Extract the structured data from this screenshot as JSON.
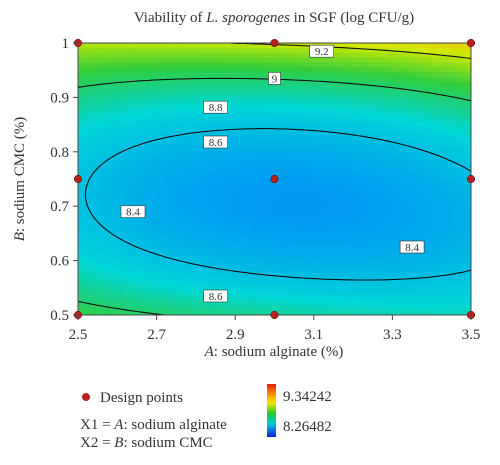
{
  "chart_data": {
    "type": "heatmap",
    "subtype": "contour",
    "title_prefix": "Viability of ",
    "title_italic": "L. sporogenes",
    "title_suffix": " in SGF (log CFU/g)",
    "xlabel_var": "A",
    "xlabel_text": ": sodium alginate (%)",
    "ylabel_var": "B",
    "ylabel_text": ": sodium CMC (%)",
    "xlim": [
      2.5,
      3.5
    ],
    "ylim": [
      0.5,
      1.0
    ],
    "x_ticks": [
      "2.5",
      "2.7",
      "2.9",
      "3.1",
      "3.3",
      "3.5"
    ],
    "y_ticks": [
      "0.5",
      "0.6",
      "0.7",
      "0.8",
      "0.9",
      "1"
    ],
    "x_tick_values": [
      2.5,
      2.7,
      2.9,
      3.1,
      3.3,
      3.5
    ],
    "y_tick_values": [
      0.5,
      0.6,
      0.7,
      0.8,
      0.9,
      1.0
    ],
    "response_min": 8.26482,
    "response_max": 9.34242,
    "contour_levels": [
      8.4,
      8.6,
      8.8,
      9,
      9.2
    ],
    "contour_labels": [
      {
        "text": "9.2",
        "x": 3.12,
        "y": 0.985
      },
      {
        "text": "9",
        "x": 3.0,
        "y": 0.935
      },
      {
        "text": "8.8",
        "x": 2.85,
        "y": 0.882
      },
      {
        "text": "8.6",
        "x": 2.85,
        "y": 0.818
      },
      {
        "text": "8.4",
        "x": 2.64,
        "y": 0.69
      },
      {
        "text": "8.4",
        "x": 3.35,
        "y": 0.625
      },
      {
        "text": "8.6",
        "x": 2.85,
        "y": 0.535
      }
    ],
    "design_points": [
      {
        "x": 2.5,
        "y": 1.0
      },
      {
        "x": 3.0,
        "y": 1.0
      },
      {
        "x": 3.5,
        "y": 1.0
      },
      {
        "x": 2.5,
        "y": 0.75
      },
      {
        "x": 3.0,
        "y": 0.75
      },
      {
        "x": 3.5,
        "y": 0.75
      },
      {
        "x": 2.5,
        "y": 0.5
      },
      {
        "x": 3.0,
        "y": 0.5
      },
      {
        "x": 3.5,
        "y": 0.5
      }
    ],
    "legend": {
      "design_points_label": "Design points",
      "x1_prefix": "X1 = ",
      "x1_var": "A",
      "x1_text": ": sodium alginate",
      "x2_prefix": "X2 = ",
      "x2_var": "B",
      "x2_text": ": sodium CMC",
      "colorbar_max_label": "9.34242",
      "colorbar_min_label": "8.26482",
      "colorbar_max_color": "#e41a1c",
      "colorbar_min_color": "#2222cc"
    },
    "colors": {
      "design_point": "#b22222",
      "contour_line": "#111111"
    }
  }
}
